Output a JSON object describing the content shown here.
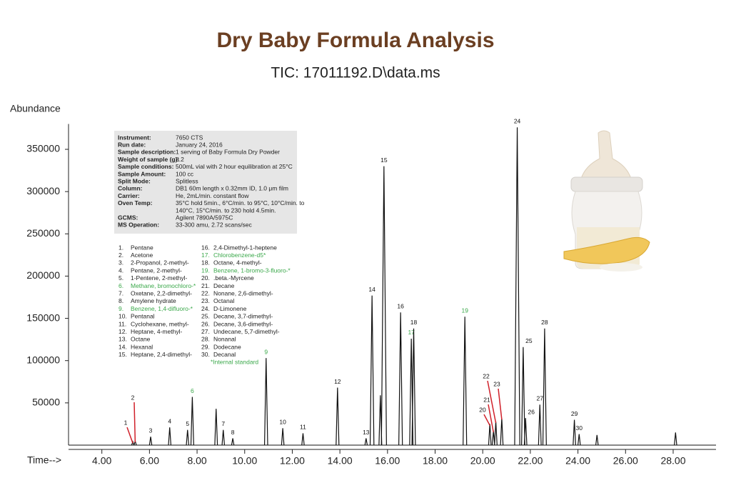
{
  "chart_data": {
    "type": "chromatogram",
    "title": "Dry Baby Formula Analysis",
    "subtitle": "TIC: 17011192.D\\data.ms",
    "y_label": "Abundance",
    "x_label": "Time-->",
    "xlim": [
      2.6,
      29.8
    ],
    "ylim": [
      0,
      380000
    ],
    "xticks": [
      {
        "value": 4,
        "label": "4.00"
      },
      {
        "value": 6,
        "label": "6.00"
      },
      {
        "value": 8,
        "label": "8.00"
      },
      {
        "value": 10,
        "label": "10.00"
      },
      {
        "value": 12,
        "label": "12.00"
      },
      {
        "value": 14,
        "label": "14.00"
      },
      {
        "value": 16,
        "label": "16.00"
      },
      {
        "value": 18,
        "label": "18.00"
      },
      {
        "value": 20,
        "label": "20.00"
      },
      {
        "value": 22,
        "label": "22.00"
      },
      {
        "value": 24,
        "label": "24.00"
      },
      {
        "value": 26,
        "label": "26.00"
      },
      {
        "value": 28,
        "label": "28.00"
      }
    ],
    "yticks": [
      50000,
      100000,
      150000,
      200000,
      250000,
      300000,
      350000
    ],
    "color": "#111111",
    "leader_color": "#d0202a",
    "standard_color": "#3aa84a",
    "x": [
      5.3,
      5.4,
      6.05,
      6.85,
      7.6,
      7.8,
      8.8,
      9.1,
      9.5,
      10.9,
      11.6,
      12.45,
      13.9,
      15.1,
      15.35,
      15.7,
      15.85,
      16.55,
      17.0,
      17.1,
      19.25,
      20.3,
      20.45,
      20.55,
      20.8,
      21.45,
      21.7,
      21.8,
      22.4,
      22.6,
      23.85,
      24.05,
      24.8,
      28.1
    ],
    "values": [
      4000,
      5000,
      10000,
      21000,
      18000,
      57000,
      43000,
      18000,
      8000,
      103000,
      20000,
      14000,
      68000,
      8000,
      177000,
      59000,
      330000,
      157000,
      126000,
      138000,
      152000,
      25000,
      17000,
      28000,
      32000,
      376000,
      116000,
      32000,
      48000,
      138000,
      30000,
      13000,
      12000,
      15000
    ],
    "peak_labels": [
      "1",
      "2",
      "3",
      "4",
      "5",
      "6",
      null,
      "7",
      "8",
      "9",
      "10",
      "11",
      "12",
      "13",
      "14",
      null,
      "15",
      "16",
      "17",
      "18",
      "19",
      "20",
      "21",
      "22",
      "23",
      "24",
      "25",
      "26",
      "27",
      "28",
      "29",
      "30",
      null,
      null
    ],
    "info": [
      {
        "key": "Instrument:",
        "lines": [
          "7650 CTS"
        ]
      },
      {
        "key": "Run date:",
        "lines": [
          "January 24, 2016"
        ]
      },
      {
        "key": "Sample description:",
        "lines": [
          "1 serving of Baby Formula Dry Powder"
        ]
      },
      {
        "key": "Weight of sample (g):",
        "lines": [
          "8.2"
        ]
      },
      {
        "key": "Sample conditions:",
        "lines": [
          "500mL vial with 2 hour equilibration at 25°C"
        ]
      },
      {
        "key": "Sample Amount:",
        "lines": [
          "100 cc"
        ]
      },
      {
        "key": "Split Mode:",
        "lines": [
          "Splitless"
        ]
      },
      {
        "key": "Column:",
        "lines": [
          "DB1 60m length x 0.32mm ID, 1.0 μm film"
        ]
      },
      {
        "key": "Carrier:",
        "lines": [
          "He, 2mL/min. constant flow"
        ]
      },
      {
        "key": "Oven Temp:",
        "lines": [
          "35°C hold 5min., 6°C/min. to 95°C, 10°C/min. to",
          "140°C, 15°C/min. to 230 hold 4.5min."
        ]
      },
      {
        "key": "GCMS:",
        "lines": [
          "Agilent 7890A/5975C"
        ]
      },
      {
        "key": "MS Operation:",
        "lines": [
          "33-300 amu, 2.72 scans/sec"
        ]
      }
    ],
    "compounds": [
      {
        "number": "1.",
        "name": "Pentane",
        "standard": false
      },
      {
        "number": "2.",
        "name": "Acetone",
        "standard": false
      },
      {
        "number": "3.",
        "name": "2-Propanol, 2-methyl-",
        "standard": false
      },
      {
        "number": "4.",
        "name": "Pentane, 2-methyl-",
        "standard": false
      },
      {
        "number": "5.",
        "name": "1-Pentene, 2-methyl-",
        "standard": false
      },
      {
        "number": "6.",
        "name": "Methane, bromochloro-*",
        "standard": true
      },
      {
        "number": "7.",
        "name": "Oxetane, 2,2-dimethyl-",
        "standard": false
      },
      {
        "number": "8.",
        "name": "Amylene hydrate",
        "standard": false
      },
      {
        "number": "9.",
        "name": "Benzene, 1,4-difluoro-*",
        "standard": true
      },
      {
        "number": "10.",
        "name": "Pentanal",
        "standard": false
      },
      {
        "number": "11.",
        "name": "Cyclohexane, methyl-",
        "standard": false
      },
      {
        "number": "12.",
        "name": "Heptane, 4-methyl-",
        "standard": false
      },
      {
        "number": "13.",
        "name": "Octane",
        "standard": false
      },
      {
        "number": "14.",
        "name": "Hexanal",
        "standard": false
      },
      {
        "number": "15.",
        "name": "Heptane, 2,4-dimethyl-",
        "standard": false
      },
      {
        "number": "16.",
        "name": "2,4-Dimethyl-1-heptene",
        "standard": false
      },
      {
        "number": "17.",
        "name": "Chlorobenzene-d5*",
        "standard": true
      },
      {
        "number": "18.",
        "name": "Octane, 4-methyl-",
        "standard": false
      },
      {
        "number": "19.",
        "name": "Benzene, 1-bromo-3-fluoro-*",
        "standard": true
      },
      {
        "number": "20.",
        "name": ".beta.-Myrcene",
        "standard": false
      },
      {
        "number": "21.",
        "name": "Decane",
        "standard": false
      },
      {
        "number": "22.",
        "name": "Nonane, 2,6-dimethyl-",
        "standard": false
      },
      {
        "number": "23.",
        "name": "Octanal",
        "standard": false
      },
      {
        "number": "24.",
        "name": "D-Limonene",
        "standard": false
      },
      {
        "number": "25.",
        "name": "Decane, 3,7-dimethyl-",
        "standard": false
      },
      {
        "number": "26.",
        "name": "Decane, 3,6-dimethyl-",
        "standard": false
      },
      {
        "number": "27.",
        "name": "Undecane, 5,7-dimethyl-",
        "standard": false
      },
      {
        "number": "28.",
        "name": "Nonanal",
        "standard": false
      },
      {
        "number": "29.",
        "name": "Dodecane",
        "standard": false
      },
      {
        "number": "30.",
        "name": "Decanal",
        "standard": false
      }
    ],
    "standard_note": "*Internal standard"
  }
}
